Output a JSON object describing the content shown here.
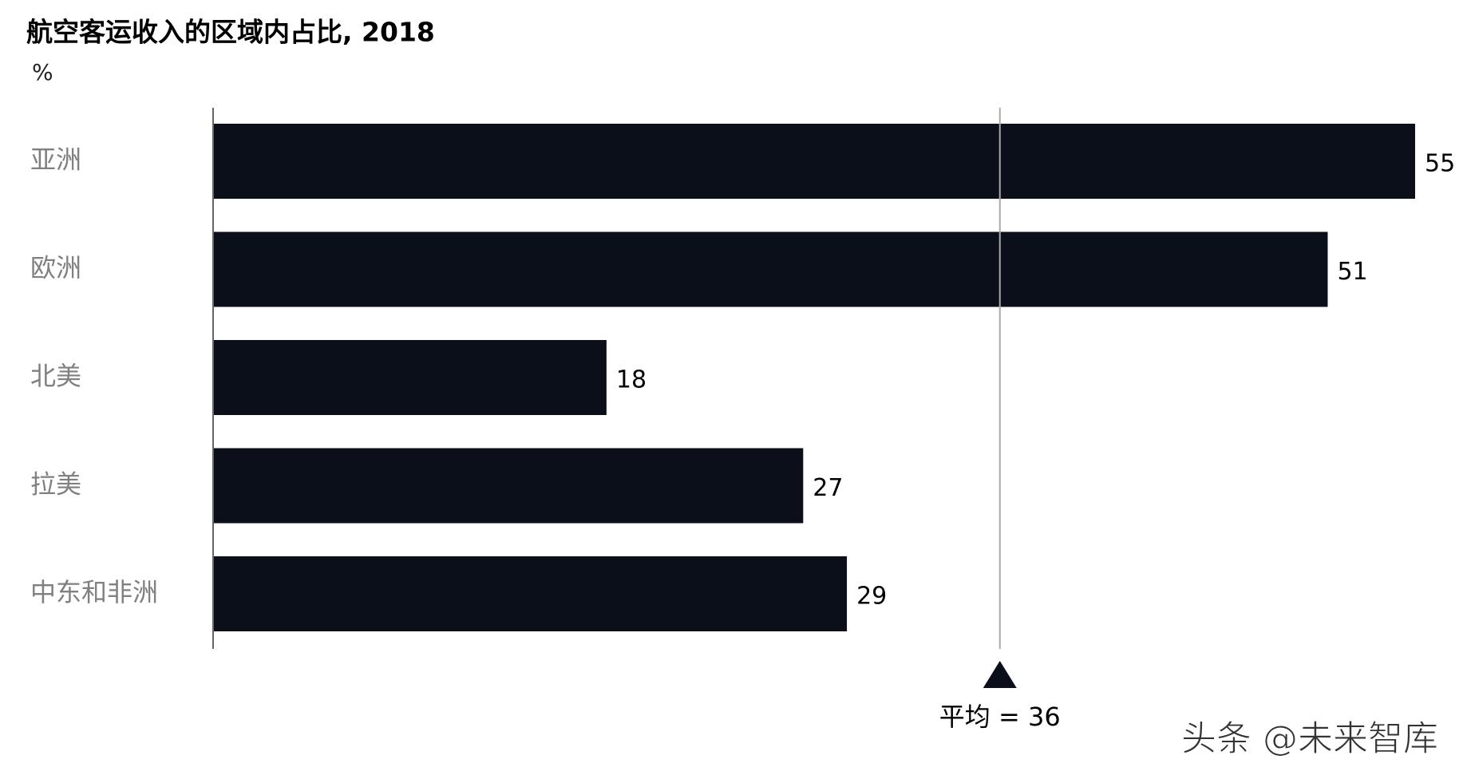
{
  "chart_data": {
    "type": "bar",
    "orientation": "horizontal",
    "title": "航空客运收入的区域内占比, 2018",
    "unit_label": "%",
    "categories": [
      "亚洲",
      "欧洲",
      "北美",
      "拉美",
      "中东和非洲"
    ],
    "values": [
      55,
      51,
      18,
      27,
      29
    ],
    "color": "#0b0f19",
    "xlim": [
      0,
      55
    ],
    "reference_line": {
      "value": 36,
      "label": "平均 = 36"
    },
    "watermark": "头条 @未来智库"
  }
}
